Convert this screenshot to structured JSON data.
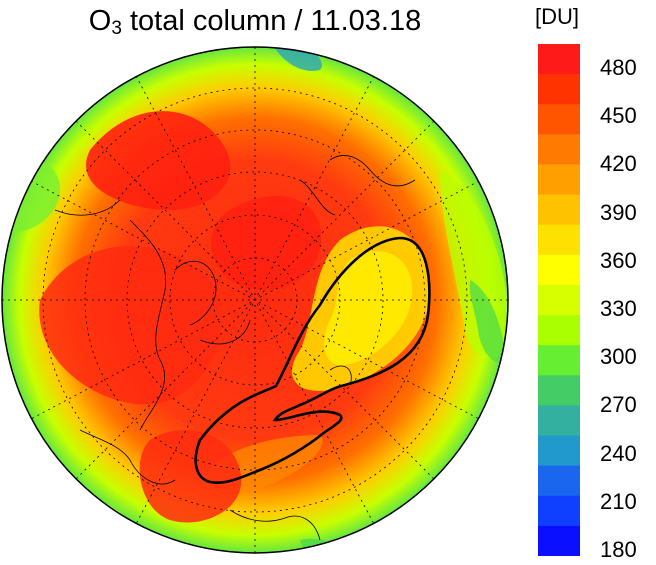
{
  "title": {
    "species": "O",
    "subscript": "3",
    "rest": " total column / 11.03.18"
  },
  "colorbar": {
    "unit": "[DU]",
    "ticks": [
      "480",
      "450",
      "420",
      "390",
      "360",
      "330",
      "300",
      "270",
      "240",
      "210",
      "180"
    ],
    "colors": [
      "#ff1a1a",
      "#ff3300",
      "#ff5500",
      "#ff7a00",
      "#ffa000",
      "#ffc200",
      "#ffe100",
      "#ffff00",
      "#d8ff00",
      "#aaff00",
      "#66ee33",
      "#44cc66",
      "#33b0a0",
      "#2299cc",
      "#1a66ee",
      "#1040ff",
      "#0a10ff"
    ]
  },
  "map": {
    "projection": "north polar stereographic",
    "graticule": "dotted",
    "ocean_color": "#ff5a1a",
    "colors": {
      "high": "#ff2a10",
      "mid_high": "#ff6a00",
      "mid": "#ffd000",
      "low": "#b8ff00",
      "lower": "#4cd84a",
      "lowest": "#2aa6b8",
      "coast": "#000000"
    }
  }
}
